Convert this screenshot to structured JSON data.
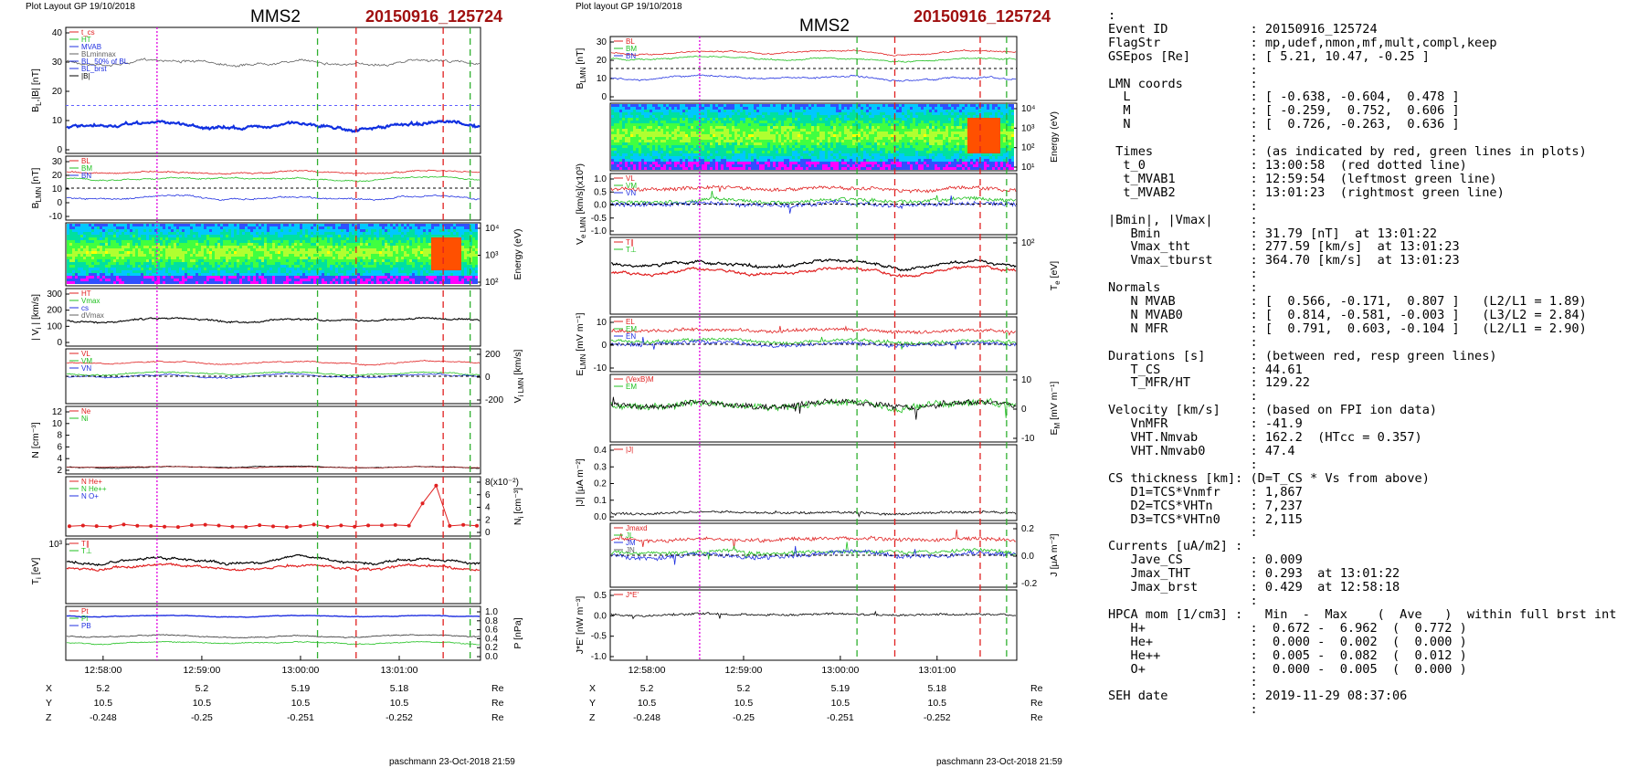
{
  "left_figure": {
    "header": "Plot Layout GP 19/10/2018",
    "title": "MMS2",
    "event": "20150916_125724",
    "footer": "paschmann 23-Oct-2018 21:59",
    "time_ticks": [
      "12:58:00",
      "12:59:00",
      "13:00:00",
      "13:01:00"
    ],
    "pos_rows": [
      {
        "label": "X",
        "values": [
          "5.2",
          "5.2",
          "5.19",
          "5.18"
        ],
        "unit": "Re"
      },
      {
        "label": "Y",
        "values": [
          "10.5",
          "10.5",
          "10.5",
          "10.5"
        ],
        "unit": "Re"
      },
      {
        "label": "Z",
        "values": [
          "-0.248",
          "-0.25",
          "-0.251",
          "-0.252"
        ],
        "unit": "Re"
      }
    ],
    "panels": [
      {
        "key": "bl",
        "ylabel": "B",
        "ysub": "L",
        "ysuffix": ",|B| [nT]",
        "ticks": [
          "40",
          "30",
          "20",
          "10",
          "0"
        ],
        "legend": [
          "t_cs",
          "HT",
          "MVAB",
          "BLminmax",
          "BL_50% of BL",
          "BL_brst",
          "|B|"
        ]
      },
      {
        "key": "blmn",
        "ylabel": "B",
        "ysub": "LMN",
        "ysuffix": " [nT]",
        "ticks": [
          "30",
          "20",
          "10",
          "0",
          "-10"
        ],
        "legend": [
          "BL",
          "BM",
          "BN"
        ]
      },
      {
        "key": "espec",
        "ylabel": "Energy (eV)",
        "ysub": "",
        "ysuffix": "",
        "ticks": [
          "10⁴",
          "10³",
          "10²"
        ]
      },
      {
        "key": "vi",
        "ylabel": "| V",
        "ysub": "i",
        "ysuffix": " | [km/s]",
        "ticks": [
          "300",
          "200",
          "100",
          "0"
        ],
        "legend": [
          "HT",
          "Vmax",
          "cs",
          "dVmax"
        ]
      },
      {
        "key": "vilmn",
        "ylabel": "V",
        "ysub": "i LMN",
        "ysuffix": " [km/s]",
        "ticks": [
          "200",
          "0",
          "-200"
        ],
        "legend": [
          "VL",
          "VM",
          "VN"
        ]
      },
      {
        "key": "n",
        "ylabel": "N [cm",
        "ysub": "",
        "ysuffix": "⁻³]",
        "ticks": [
          "12",
          "10",
          "8",
          "6",
          "4",
          "2"
        ],
        "legend": [
          "Ne",
          "Ni"
        ]
      },
      {
        "key": "nhpca",
        "ylabel": "N",
        "ysub": "i",
        "ysuffix": " [cm⁻³]",
        "ticks": [
          "8(x10⁻²)",
          "6",
          "4",
          "2",
          "0"
        ],
        "legend": [
          "N He+",
          "N He++",
          "N O+"
        ]
      },
      {
        "key": "ti",
        "ylabel": "T",
        "ysub": "i",
        "ysuffix": " [eV]",
        "ticks": [
          "10³"
        ],
        "legend": [
          "T∥",
          "T⊥"
        ]
      },
      {
        "key": "p",
        "ylabel": "P [nPa]",
        "ysub": "",
        "ysuffix": "",
        "ticks": [
          "1.0",
          "0.8",
          "0.6",
          "0.4",
          "0.2",
          "0.0"
        ],
        "legend": [
          "Pt",
          "Pi",
          "PB"
        ]
      }
    ]
  },
  "right_figure": {
    "header": "Plot layout GP 19/10/2018",
    "title": "MMS2",
    "event": "20150916_125724",
    "footer": "paschmann 23-Oct-2018 21:59",
    "time_ticks": [
      "12:58:00",
      "12:59:00",
      "13:00:00",
      "13:01:00"
    ],
    "pos_rows": [
      {
        "label": "X",
        "values": [
          "5.2",
          "5.2",
          "5.19",
          "5.18"
        ],
        "unit": "Re"
      },
      {
        "label": "Y",
        "values": [
          "10.5",
          "10.5",
          "10.5",
          "10.5"
        ],
        "unit": "Re"
      },
      {
        "label": "Z",
        "values": [
          "-0.248",
          "-0.25",
          "-0.251",
          "-0.252"
        ],
        "unit": "Re"
      }
    ],
    "panels": [
      {
        "key": "blmn",
        "ylabel": "B",
        "ysub": "LMN",
        "ysuffix": " [nT]",
        "ticks": [
          "30",
          "20",
          "10",
          "0"
        ],
        "legend": [
          "BL",
          "BM",
          "BN"
        ]
      },
      {
        "key": "espec",
        "ylabel": "Energy (eV)",
        "ysub": "",
        "ysuffix": "",
        "ticks": [
          "10⁴",
          "10³",
          "10²",
          "10¹"
        ]
      },
      {
        "key": "ve",
        "ylabel": "V",
        "ysub": "e LMN",
        "ysuffix": " [km/s](x10³)",
        "ticks": [
          "1.0",
          "0.5",
          "0.0",
          "-0.5",
          "-1.0"
        ],
        "legend": [
          "VL",
          "VM",
          "VN"
        ]
      },
      {
        "key": "te",
        "ylabel": "T",
        "ysub": "e",
        "ysuffix": " [eV]",
        "ticks": [
          "10²"
        ],
        "legend": [
          "T∥",
          "T⊥"
        ]
      },
      {
        "key": "elmn",
        "ylabel": "E",
        "ysub": "LMN",
        "ysuffix": " [mV m⁻¹]",
        "ticks": [
          "10",
          "0",
          "-10"
        ],
        "legend": [
          "EL",
          "EM",
          "EN"
        ]
      },
      {
        "key": "em",
        "ylabel": "E",
        "ysub": "M",
        "ysuffix": " [mV m⁻¹]",
        "ticks": [
          "10",
          "0",
          "-10"
        ],
        "legend": [
          "(VexB)M",
          "EM"
        ]
      },
      {
        "key": "j",
        "ylabel": "|J| [μA m⁻²]",
        "ysub": "",
        "ysuffix": "",
        "ticks": [
          "0.4",
          "0.3",
          "0.2",
          "0.1",
          "0.0"
        ],
        "legend": [
          "|J|"
        ]
      },
      {
        "key": "jlmn",
        "ylabel": "J [μA m⁻²]",
        "ysub": "",
        "ysuffix": "",
        "ticks": [
          "0.2",
          "0.0",
          "-0.2"
        ],
        "legend": [
          "Jmaxd",
          "JL",
          "JM",
          "JN"
        ]
      },
      {
        "key": "je",
        "ylabel": "J*E' [nW m⁻³]",
        "ysub": "",
        "ysuffix": "",
        "ticks": [
          "0.5",
          "0.0",
          "-0.5",
          "-1.0"
        ],
        "legend": [
          "J*E'"
        ]
      }
    ]
  },
  "info_lines": [
    ":",
    "Event ID           : 20150916_125724",
    "FlagStr            : mp,udef,nmon,mf,mult,compl,keep",
    "GSEpos [Re]        : [ 5.21, 10.47, -0.25 ]",
    "                   :",
    "LMN coords         :",
    "  L                : [ -0.638, -0.604,  0.478 ]",
    "  M                : [ -0.259,  0.752,  0.606 ]",
    "  N                : [  0.726, -0.263,  0.636 ]",
    "                   :",
    " Times             : (as indicated by red, green lines in plots)",
    "  t_0              : 13:00:58  (red dotted line)",
    "  t_MVAB1          : 12:59:54  (leftmost green line)",
    "  t_MVAB2          : 13:01:23  (rightmost green line)",
    "                   :",
    "|Bmin|, |Vmax|     :",
    "   Bmin            : 31.79 [nT]  at 13:01:22",
    "   Vmax_tht        : 277.59 [km/s]  at 13:01:23",
    "   Vmax_tburst     : 364.70 [km/s]  at 13:01:23",
    "                   :",
    "Normals            :",
    "   N MVAB          : [  0.566, -0.171,  0.807 ]   (L2/L1 = 1.89)",
    "   N MVAB0         : [  0.814, -0.581, -0.003 ]   (L3/L2 = 2.84)",
    "   N MFR           : [  0.791,  0.603, -0.104 ]   (L2/L1 = 2.90)",
    "                   :",
    "Durations [s]      : (between red, resp green lines)",
    "   T_CS            : 44.61",
    "   T_MFR/HT        : 129.22",
    "                   :",
    "Velocity [km/s]    : (based on FPI ion data)",
    "   VnMFR           : -41.9",
    "   VHT.Nmvab       : 162.2  (HTcc = 0.357)",
    "   VHT.Nmvab0      : 47.4",
    "                   :",
    "CS thickness [km]: (D=T_CS * Vs from above)",
    "   D1=TCS*Vnmfr    : 1,867",
    "   D2=TCS*VHTn     : 7,237",
    "   D3=TCS*VHTn0    : 2,115",
    "                   :",
    "Currents [uA/m2] :",
    "   Jave_CS         : 0.009",
    "   Jmax_THT        : 0.293  at 13:01:22",
    "   Jmax_brst       : 0.429  at 12:58:18",
    "                   :",
    "HPCA mom [1/cm3] :   Min  -  Max    (  Ave   )  within full brst int",
    "   H+              :  0.672 -  6.962  (  0.772 )",
    "   He+             :  0.000 -  0.002  (  0.000 )",
    "   He++            :  0.005 -  0.082  (  0.012 )",
    "   O+              :  0.000 -  0.005  (  0.000 )",
    "                   :",
    "SEH date           : 2019-11-29 08:37:06",
    "                   :"
  ],
  "chart_data": [
    {
      "type": "line",
      "title": "MMS2 20150916_125724",
      "x_ticks": [
        "12:58:00",
        "12:59:00",
        "13:00:00",
        "13:01:00"
      ],
      "series": [
        {
          "name": "|B|",
          "approx": "~30-40 nT, minimum 31.79 nT at 13:01:22"
        },
        {
          "name": "BL",
          "approx": "~5-15 nT, peak ~27 nT near 13:01:00"
        },
        {
          "name": "Ni",
          "approx": "~1-2 cm^-3, rising to ~11 cm^-3 near 13:01:00"
        }
      ],
      "vertical_markers": {
        "red_dashed": [
          "13:00:20",
          "13:01:00"
        ],
        "green_dashed": [
          "12:59:54",
          "13:01:23"
        ],
        "magenta_dotted": [
          "12:58:18"
        ]
      }
    }
  ]
}
